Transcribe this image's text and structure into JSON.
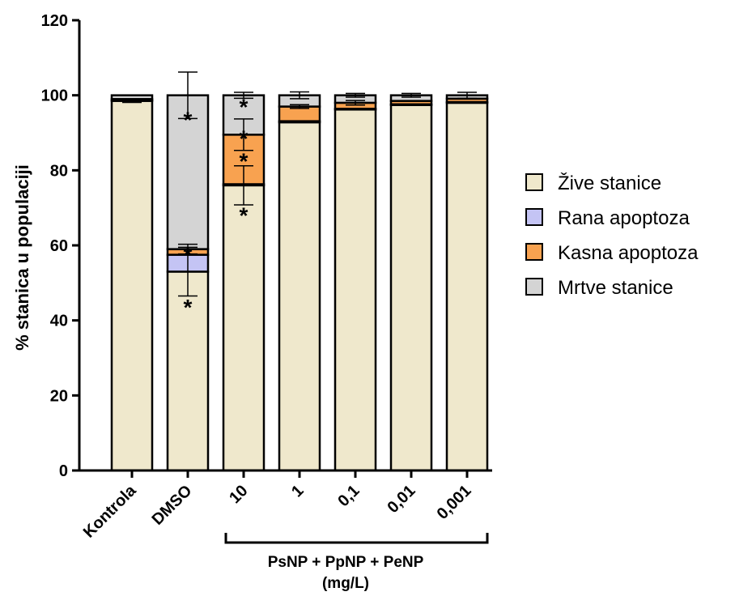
{
  "chart_data": {
    "type": "bar",
    "stacked": true,
    "title": "",
    "ylabel": "% stanica u populaciji",
    "ylim": [
      0,
      120
    ],
    "yticks": [
      0,
      20,
      40,
      60,
      80,
      100,
      120
    ],
    "categories": [
      "Kontrola",
      "DMSO",
      "10",
      "1",
      "0,1",
      "0,01",
      "0,001"
    ],
    "group_label": {
      "line1": "PsNP + PpNP + PeNP",
      "line2": "(mg/L)",
      "from_category": 2,
      "to_category": 6
    },
    "legend_position": "right",
    "colors": {
      "Žive stanice": "#efe8cc",
      "Rana apoptoza": "#c4c4f4",
      "Kasna apoptoza": "#f8a250",
      "Mrtve stanice": "#d4d4d4"
    },
    "series": [
      {
        "name": "Žive stanice",
        "values": [
          98.5,
          53,
          76,
          92.8,
          96.2,
          97.4,
          98
        ]
      },
      {
        "name": "Rana apoptoza",
        "values": [
          0.2,
          4.5,
          0.3,
          0.3,
          0.2,
          0.2,
          0.2
        ]
      },
      {
        "name": "Kasna apoptoza",
        "values": [
          0.3,
          1.5,
          13.2,
          3.9,
          1.6,
          0.9,
          0.9
        ]
      },
      {
        "name": "Mrtve stanice",
        "values": [
          1.0,
          41,
          10.5,
          3.0,
          2.0,
          1.5,
          0.9
        ]
      }
    ],
    "error_bars": [
      [
        98.5,
        0.4
      ],
      [
        100,
        6.2
      ],
      [
        100,
        0.8
      ],
      [
        100,
        0.9
      ],
      [
        100,
        0.5
      ],
      [
        100,
        0.5
      ],
      [
        100,
        0.8
      ],
      [
        53,
        6.5
      ],
      [
        59,
        1.3
      ],
      [
        76,
        5.2
      ],
      [
        89.5,
        4.2
      ],
      [
        97,
        0.5
      ],
      [
        98,
        0.6
      ]
    ],
    "significance_markers": [
      {
        "category": 1,
        "y": 94,
        "text": "*"
      },
      {
        "category": 1,
        "y": 58,
        "text": "*"
      },
      {
        "category": 1,
        "y": 44,
        "text": "*"
      },
      {
        "category": 2,
        "y": 97.5,
        "text": "*"
      },
      {
        "category": 2,
        "y": 89,
        "text": "*"
      },
      {
        "category": 2,
        "y": 83,
        "text": "*"
      },
      {
        "category": 2,
        "y": 68.5,
        "text": "*"
      }
    ]
  }
}
